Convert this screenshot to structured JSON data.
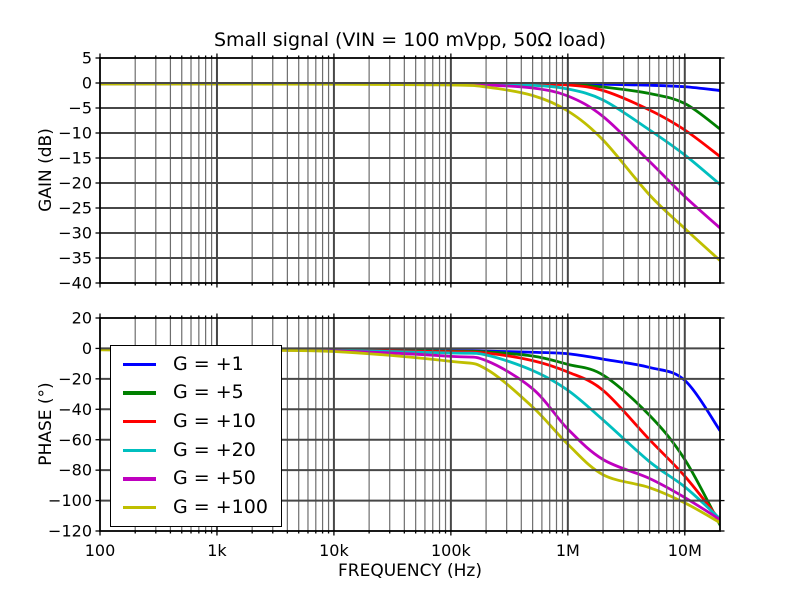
{
  "figure": {
    "title": "Small signal (VIN = 100 mVpp, 50Ω load)",
    "background": "#ffffff"
  },
  "x_axis": {
    "label": "FREQUENCY (Hz)",
    "scale": "log",
    "range_hz": [
      100,
      20000000
    ],
    "ticks": [
      {
        "hz": 100,
        "label": "100"
      },
      {
        "hz": 1000,
        "label": "1k"
      },
      {
        "hz": 10000,
        "label": "10k"
      },
      {
        "hz": 100000,
        "label": "100k"
      },
      {
        "hz": 1000000,
        "label": "1M"
      },
      {
        "hz": 10000000,
        "label": "10M"
      }
    ]
  },
  "colors": {
    "grid_major": "#474747",
    "grid_minor": "#6e6e6e",
    "spine": "#000000",
    "text": "#000000"
  },
  "legend": {
    "position": "upper-left-of-phase-plot",
    "items": [
      {
        "label": "G = +1",
        "color": "#0000ff"
      },
      {
        "label": "G = +5",
        "color": "#008000"
      },
      {
        "label": "G = +10",
        "color": "#ff0000"
      },
      {
        "label": "G = +20",
        "color": "#00bfbf"
      },
      {
        "label": "G = +50",
        "color": "#bf00bf"
      },
      {
        "label": "G = +100",
        "color": "#bfbf00"
      }
    ]
  },
  "chart_data": [
    {
      "type": "line",
      "name": "gain",
      "ylabel": "GAIN (dB)",
      "ylim": [
        -40,
        5
      ],
      "ytick_step": 5,
      "yticks": [
        "5",
        "0",
        "−5",
        "−10",
        "−15",
        "−20",
        "−25",
        "−30",
        "−35",
        "−40"
      ],
      "grid": "major-xy + minor-x (log)",
      "x_hz": [
        100,
        1000,
        10000,
        100000,
        200000,
        500000,
        1000000,
        2000000,
        5000000,
        10000000,
        20000000
      ],
      "series": [
        {
          "name": "G = +1",
          "color": "#0000ff",
          "values": [
            -0.15,
            -0.15,
            -0.15,
            -0.15,
            -0.15,
            -0.15,
            -0.2,
            -0.25,
            -0.45,
            -0.75,
            -1.5
          ]
        },
        {
          "name": "G = +5",
          "color": "#008000",
          "values": [
            -0.15,
            -0.15,
            -0.15,
            -0.15,
            -0.15,
            -0.2,
            -0.25,
            -0.8,
            -2.1,
            -4.1,
            -9.2
          ]
        },
        {
          "name": "G = +10",
          "color": "#ff0000",
          "values": [
            -0.15,
            -0.15,
            -0.15,
            -0.15,
            -0.2,
            -0.25,
            -0.4,
            -1.5,
            -5.4,
            -9.4,
            -14.7
          ]
        },
        {
          "name": "G = +20",
          "color": "#00bfbf",
          "values": [
            -0.15,
            -0.15,
            -0.15,
            -0.2,
            -0.25,
            -0.45,
            -1.2,
            -3.4,
            -9.4,
            -14.4,
            -20.3
          ]
        },
        {
          "name": "G = +50",
          "color": "#bf00bf",
          "values": [
            -0.15,
            -0.15,
            -0.15,
            -0.25,
            -0.4,
            -1.0,
            -2.6,
            -6.7,
            -15.7,
            -22.7,
            -29.0
          ]
        },
        {
          "name": "G = +100",
          "color": "#bfbf00",
          "values": [
            -0.2,
            -0.2,
            -0.25,
            -0.4,
            -0.8,
            -2.5,
            -5.6,
            -11.4,
            -22.4,
            -29.1,
            -35.5
          ]
        }
      ]
    },
    {
      "type": "line",
      "name": "phase",
      "ylabel": "PHASE (°)",
      "ylim": [
        -120,
        20
      ],
      "ytick_step": 20,
      "yticks": [
        "20",
        "0",
        "−20",
        "−40",
        "−60",
        "−80",
        "−100",
        "−120"
      ],
      "grid": "major-xy + minor-x (log)",
      "x_hz": [
        100,
        1000,
        10000,
        100000,
        200000,
        500000,
        1000000,
        2000000,
        5000000,
        10000000,
        20000000
      ],
      "series": [
        {
          "name": "G = +1",
          "color": "#0000ff",
          "values": [
            -0.8,
            -0.8,
            -1.0,
            -1.5,
            -1.8,
            -2.5,
            -3.5,
            -7,
            -12.5,
            -21,
            -54
          ]
        },
        {
          "name": "G = +5",
          "color": "#008000",
          "values": [
            -0.8,
            -0.9,
            -1.2,
            -1.8,
            -2.3,
            -5,
            -10.5,
            -17.5,
            -44,
            -73,
            -116
          ]
        },
        {
          "name": "G = +10",
          "color": "#ff0000",
          "values": [
            -0.8,
            -0.9,
            -1.2,
            -2.2,
            -3,
            -8,
            -15.5,
            -27.5,
            -60,
            -84,
            -113
          ]
        },
        {
          "name": "G = +20",
          "color": "#00bfbf",
          "values": [
            -0.8,
            -0.9,
            -1.3,
            -3,
            -4.3,
            -14.5,
            -27.5,
            -47,
            -74.5,
            -91,
            -112
          ]
        },
        {
          "name": "G = +50",
          "color": "#bf00bf",
          "values": [
            -0.8,
            -1.0,
            -1.6,
            -5.2,
            -8,
            -26.5,
            -53,
            -73,
            -85.5,
            -98,
            -112.5
          ]
        },
        {
          "name": "G = +100",
          "color": "#bfbf00",
          "values": [
            -0.9,
            -1.1,
            -2,
            -8.5,
            -13.5,
            -38.5,
            -63,
            -83,
            -91.5,
            -101.5,
            -114.5
          ]
        }
      ]
    }
  ]
}
